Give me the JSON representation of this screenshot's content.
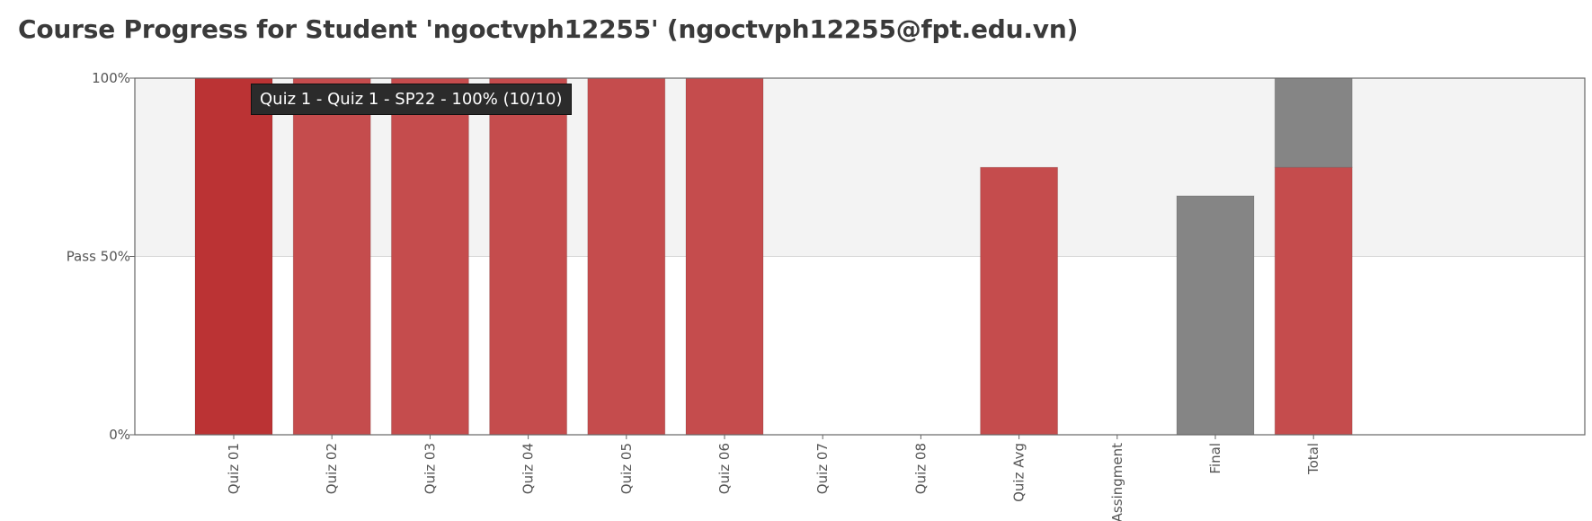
{
  "page": {
    "title": "Course Progress for Student 'ngoctvph12255' (ngoctvph12255@fpt.edu.vn)"
  },
  "tooltip": {
    "text": "Quiz 1 - Quiz 1 - SP22 - 100% (10/10)"
  },
  "chart_data": {
    "type": "bar",
    "title": "",
    "xlabel": "",
    "ylabel": "",
    "ylim": [
      0,
      100
    ],
    "y_ticks": [
      {
        "value": 0,
        "label": "0%"
      },
      {
        "value": 50,
        "label": "Pass 50%"
      },
      {
        "value": 100,
        "label": "100%"
      }
    ],
    "pass_threshold": 50,
    "categories": [
      "Quiz 01",
      "Quiz 02",
      "Quiz 03",
      "Quiz 04",
      "Quiz 05",
      "Quiz 06",
      "Quiz 07",
      "Quiz 08",
      "Quiz Avg",
      "Assingment",
      "Final",
      "Total"
    ],
    "series": [
      {
        "values": [
          100,
          100,
          100,
          100,
          100,
          100,
          0,
          0,
          75,
          0,
          67,
          75
        ],
        "colors": [
          "#bb3334",
          "#c54c4d",
          "#c54c4d",
          "#c54c4d",
          "#c54c4d",
          "#c54c4d",
          "#c54c4d",
          "#c54c4d",
          "#c54c4d",
          "#c54c4d",
          "#858585",
          "#c54c4d"
        ]
      },
      {
        "values": [
          0,
          0,
          0,
          0,
          0,
          0,
          0,
          0,
          0,
          0,
          0,
          25
        ],
        "colors": [
          "#858585",
          "#858585",
          "#858585",
          "#858585",
          "#858585",
          "#858585",
          "#858585",
          "#858585",
          "#858585",
          "#858585",
          "#858585",
          "#858585"
        ]
      }
    ],
    "colors": {
      "pass_zone": "#f3f3f3",
      "axis": "#666666",
      "gridline": "#d8d8d8"
    }
  }
}
